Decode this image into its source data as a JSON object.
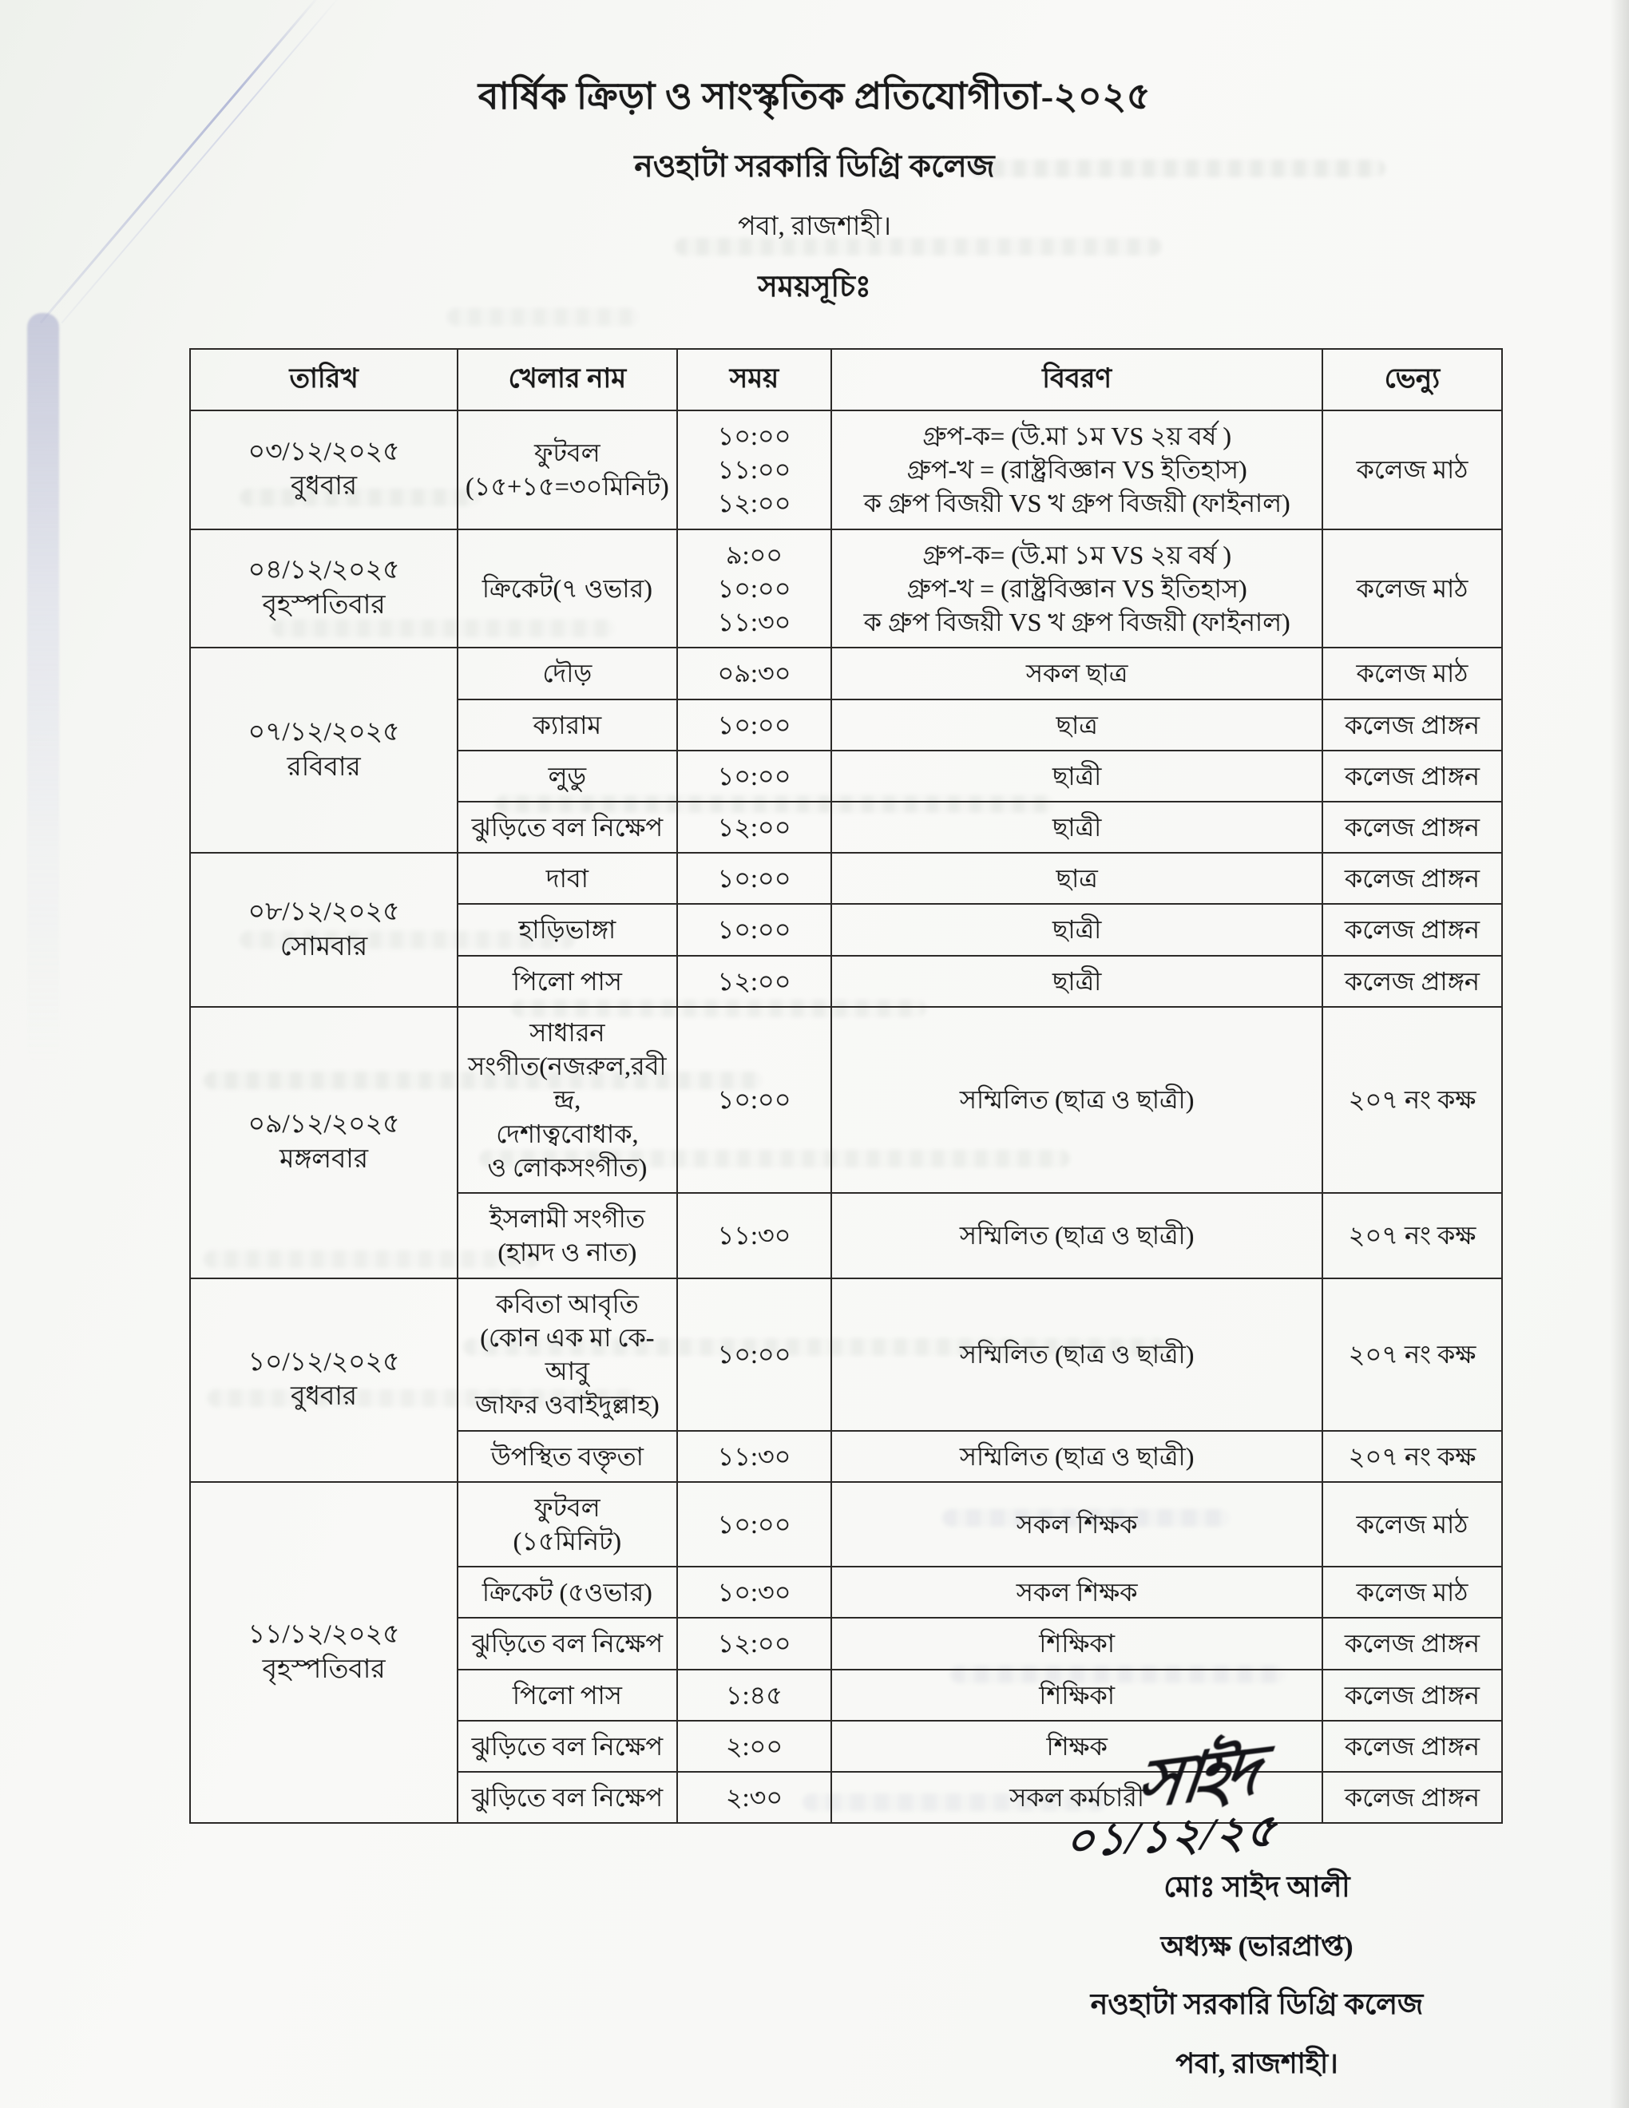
{
  "page": {
    "title": "বার্ষিক ক্রিড়া ও সাংস্কৃতিক প্রতিযোগীতা-২০২৫",
    "institution": "নওহাটা সরকারি ডিগ্রি কলেজ",
    "location": "পবা, রাজশাহী।",
    "schedule_heading": "সময়সূচিঃ"
  },
  "table": {
    "headers": [
      "তারিখ",
      "খেলার নাম",
      "সময়",
      "বিবরণ",
      "ভেন্যু"
    ],
    "sections": [
      {
        "date": "০৩/১২/২০২৫",
        "day": "বুধবার",
        "rows": [
          {
            "game": [
              "ফুটবল",
              "(১৫+১৫=৩০মিনিট)"
            ],
            "time": [
              "১০:০০",
              "১১:০০",
              "১২:০০"
            ],
            "desc": [
              "গ্রুপ-ক= (উ.মা ১ম VS ২য় বর্ষ )",
              "গ্রুপ-খ = (রাষ্ট্রবিজ্ঞান VS ইতিহাস)",
              "ক গ্রুপ বিজয়ী VS খ গ্রুপ বিজয়ী (ফাইনাল)"
            ],
            "venue": "কলেজ মাঠ"
          }
        ]
      },
      {
        "date": "০৪/১২/২০২৫",
        "day": "বৃহস্পতিবার",
        "rows": [
          {
            "game": [
              "ক্রিকেট(৭ ওভার)"
            ],
            "time": [
              "৯:০০",
              "১০:০০",
              "১১:৩০"
            ],
            "desc": [
              "গ্রুপ-ক= (উ.মা ১ম VS ২য় বর্ষ )",
              "গ্রুপ-খ = (রাষ্ট্রবিজ্ঞান VS ইতিহাস)",
              "ক গ্রুপ বিজয়ী VS খ গ্রুপ বিজয়ী (ফাইনাল)"
            ],
            "venue": "কলেজ মাঠ"
          }
        ]
      },
      {
        "date": "০৭/১২/২০২৫",
        "day": "রবিবার",
        "rows": [
          {
            "game": [
              "দৌড়"
            ],
            "time": [
              "০৯:৩০"
            ],
            "desc": [
              "সকল ছাত্র"
            ],
            "venue": "কলেজ মাঠ"
          },
          {
            "game": [
              "ক্যারাম"
            ],
            "time": [
              "১০:০০"
            ],
            "desc": [
              "ছাত্র"
            ],
            "venue": "কলেজ প্রাঙ্গন"
          },
          {
            "game": [
              "লুডু"
            ],
            "time": [
              "১০:০০"
            ],
            "desc": [
              "ছাত্রী"
            ],
            "venue": "কলেজ প্রাঙ্গন"
          },
          {
            "game": [
              "ঝুড়িতে বল নিক্ষেপ"
            ],
            "time": [
              "১২:০০"
            ],
            "desc": [
              "ছাত্রী"
            ],
            "venue": "কলেজ প্রাঙ্গন"
          }
        ]
      },
      {
        "date": "০৮/১২/২০২৫",
        "day": "সোমবার",
        "rows": [
          {
            "game": [
              "দাবা"
            ],
            "time": [
              "১০:০০"
            ],
            "desc": [
              "ছাত্র"
            ],
            "venue": "কলেজ প্রাঙ্গন"
          },
          {
            "game": [
              "হাড়িভাঙ্গা"
            ],
            "time": [
              "১০:০০"
            ],
            "desc": [
              "ছাত্রী"
            ],
            "venue": "কলেজ প্রাঙ্গন"
          },
          {
            "game": [
              "পিলো পাস"
            ],
            "time": [
              "১২:০০"
            ],
            "desc": [
              "ছাত্রী"
            ],
            "venue": "কলেজ প্রাঙ্গন"
          }
        ]
      },
      {
        "date": "০৯/১২/২০২৫",
        "day": "মঙ্গলবার",
        "rows": [
          {
            "game": [
              "সাধারন",
              "সংগীত(নজরুল,রবীন্দ্র,",
              "দেশাত্ববোধাক,",
              "ও লোকসংগীত)"
            ],
            "time": [
              "১০:০০"
            ],
            "desc": [
              "সম্মিলিত (ছাত্র ও ছাত্রী)"
            ],
            "venue": "২০৭ নং কক্ষ"
          },
          {
            "game": [
              "ইসলামী সংগীত",
              "(হামদ ও নাত)"
            ],
            "time": [
              "১১:৩০"
            ],
            "desc": [
              "সম্মিলিত (ছাত্র ও ছাত্রী)"
            ],
            "venue": "২০৭ নং কক্ষ"
          }
        ]
      },
      {
        "date": "১০/১২/২০২৫",
        "day": "বুধবার",
        "rows": [
          {
            "game": [
              "কবিতা আবৃতি",
              "(কোন এক মা কে- আবু",
              "জাফর ওবাইদুল্লাহ)"
            ],
            "time": [
              "১০:০০"
            ],
            "desc": [
              "সম্মিলিত (ছাত্র ও ছাত্রী)"
            ],
            "venue": "২০৭ নং কক্ষ"
          },
          {
            "game": [
              "উপস্থিত বক্তৃতা"
            ],
            "time": [
              "১১:৩০"
            ],
            "desc": [
              "সম্মিলিত (ছাত্র ও ছাত্রী)"
            ],
            "venue": "২০৭ নং কক্ষ"
          }
        ]
      },
      {
        "date": "১১/১২/২০২৫",
        "day": "বৃহস্পতিবার",
        "rows": [
          {
            "game": [
              "ফুটবল",
              "(১৫মিনিট)"
            ],
            "time": [
              "১০:০০"
            ],
            "desc": [
              "সকল শিক্ষক"
            ],
            "venue": "কলেজ মাঠ"
          },
          {
            "game": [
              "ক্রিকেট (৫ওভার)"
            ],
            "time": [
              "১০:৩০"
            ],
            "desc": [
              "সকল শিক্ষক"
            ],
            "venue": "কলেজ মাঠ"
          },
          {
            "game": [
              "ঝুড়িতে বল নিক্ষেপ"
            ],
            "time": [
              "১২:০০"
            ],
            "desc": [
              "শিক্ষিকা"
            ],
            "venue": "কলেজ প্রাঙ্গন"
          },
          {
            "game": [
              "পিলো পাস"
            ],
            "time": [
              "১:৪৫"
            ],
            "desc": [
              "শিক্ষিকা"
            ],
            "venue": "কলেজ প্রাঙ্গন"
          },
          {
            "game": [
              "ঝুড়িতে বল নিক্ষেপ"
            ],
            "time": [
              "২:০০"
            ],
            "desc": [
              "শিক্ষক"
            ],
            "venue": "কলেজ প্রাঙ্গন"
          },
          {
            "game": [
              "ঝুড়িতে বল নিক্ষেপ"
            ],
            "time": [
              "২:৩০"
            ],
            "desc": [
              "সকল কর্মচারী"
            ],
            "venue": "কলেজ প্রাঙ্গন"
          }
        ]
      }
    ]
  },
  "signature": {
    "scribble": "সাইদ",
    "handwritten_date": "০১/১২/২৫",
    "name": "মোঃ সাইদ আলী",
    "designation": "অধ্যক্ষ (ভারপ্রাপ্ত)",
    "institution": "নওহাটা সরকারি ডিগ্রি কলেজ",
    "location": "পবা, রাজশাহী।"
  },
  "colors": {
    "ink": "#191919",
    "crease": "#aab0d2",
    "paper": "#f7f8f5"
  }
}
